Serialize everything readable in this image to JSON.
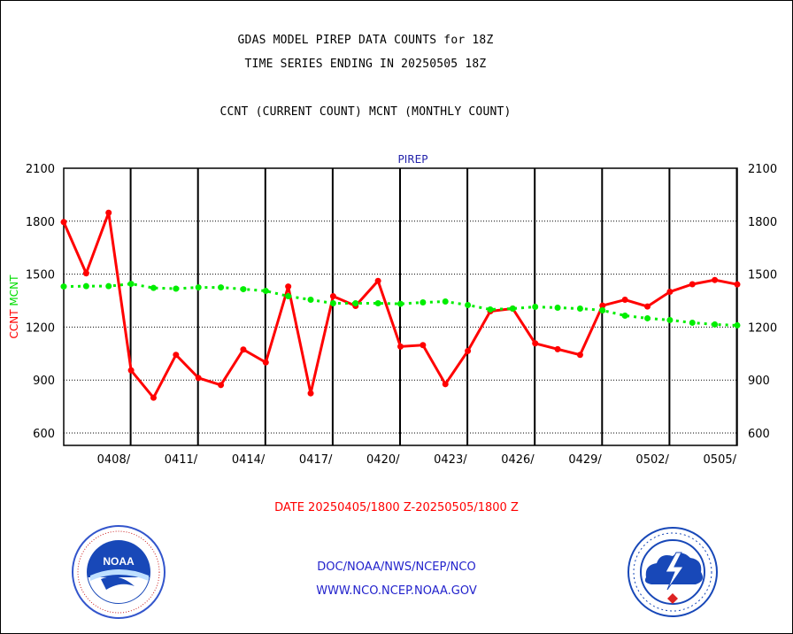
{
  "titles": {
    "line1": "GDAS MODEL PIREP DATA COUNTS for 18Z",
    "line2": "TIME SERIES ENDING IN 20250505 18Z",
    "line3": "CCNT (CURRENT COUNT) MCNT (MONTHLY COUNT)"
  },
  "footer": {
    "date_range": "DATE 20250405/1800 Z-20250505/1800 Z",
    "org": "DOC/NOAA/NWS/NCEP/NCO",
    "url": "WWW.NCO.NCEP.NOAA.GOV"
  },
  "logos": {
    "left": {
      "icon": "noaa-logo-icon",
      "text": "NOAA"
    },
    "right": {
      "icon": "nws-logo-icon"
    }
  },
  "colors": {
    "ccnt": "#ff0000",
    "mcnt": "#00ee00",
    "panel_title": "#2222aa",
    "footer_date": "#ff0000",
    "footer_link": "#2222cc"
  },
  "chart_data": {
    "type": "line",
    "title": "PIREP",
    "ylabel_left_parts": [
      {
        "text": "CCNT",
        "color": "#ff0000"
      },
      {
        "text": "MCNT",
        "color": "#00dd00"
      }
    ],
    "ylim": [
      530,
      2100
    ],
    "yticks": [
      600,
      900,
      1200,
      1500,
      1800,
      2100
    ],
    "xlim": [
      0,
      30
    ],
    "x_tick_labels": [
      {
        "x": 3,
        "label": "0408/"
      },
      {
        "x": 6,
        "label": "0411/"
      },
      {
        "x": 9,
        "label": "0414/"
      },
      {
        "x": 12,
        "label": "0417/"
      },
      {
        "x": 15,
        "label": "0420/"
      },
      {
        "x": 18,
        "label": "0423/"
      },
      {
        "x": 21,
        "label": "0426/"
      },
      {
        "x": 24,
        "label": "0429/"
      },
      {
        "x": 27,
        "label": "0502/"
      },
      {
        "x": 30,
        "label": "0505/"
      }
    ],
    "grid": true,
    "series": [
      {
        "name": "CCNT",
        "color": "#ff0000",
        "style": "solid",
        "values": [
          1795,
          1505,
          1848,
          955,
          800,
          1043,
          912,
          872,
          1073,
          1000,
          1430,
          825,
          1375,
          1320,
          1462,
          1090,
          1098,
          877,
          1065,
          1290,
          1305,
          1108,
          1075,
          1043,
          1322,
          1355,
          1317,
          1400,
          1443,
          1467,
          1442
        ]
      },
      {
        "name": "MCNT",
        "color": "#00ee00",
        "style": "dotted",
        "values": [
          1430,
          1432,
          1432,
          1445,
          1422,
          1418,
          1425,
          1425,
          1415,
          1405,
          1375,
          1355,
          1335,
          1335,
          1335,
          1332,
          1340,
          1345,
          1325,
          1300,
          1305,
          1315,
          1310,
          1305,
          1295,
          1265,
          1250,
          1240,
          1225,
          1215,
          1210
        ]
      }
    ]
  }
}
